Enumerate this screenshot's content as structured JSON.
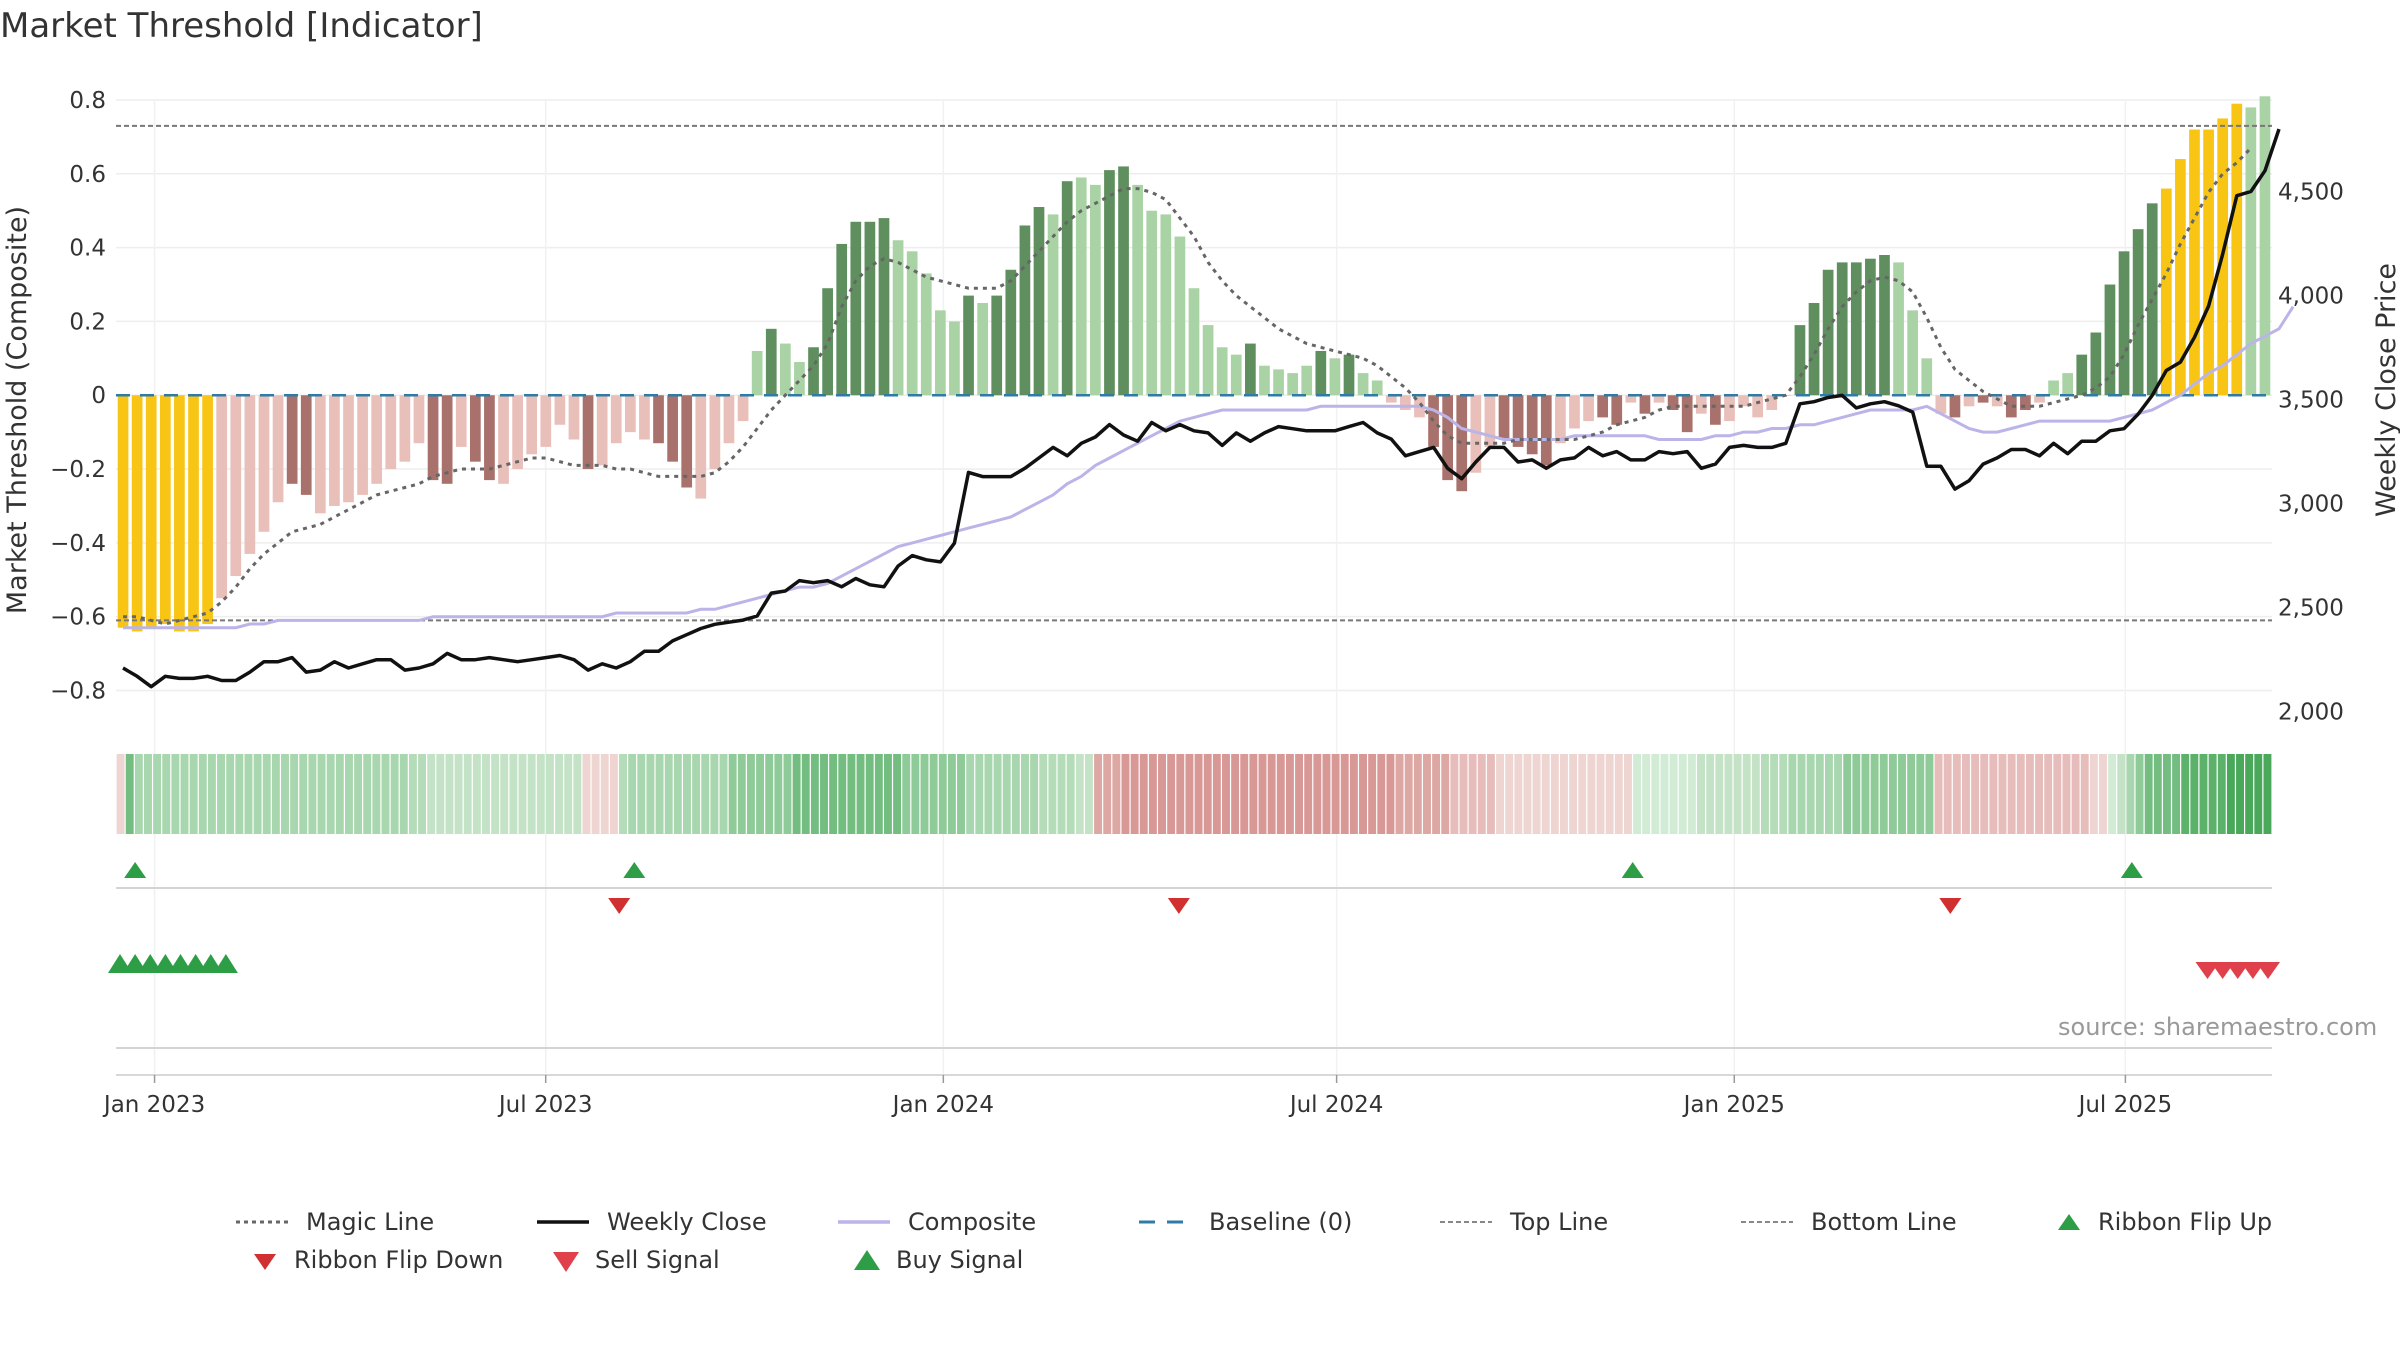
{
  "title": "Market Threshold [Indicator]",
  "source": "source: sharemaestro.com",
  "colors": {
    "pos_strong": "#5f8f5e",
    "pos_light": "#a9d3a5",
    "neg_strong": "#a8716c",
    "neg_light": "#e9bfba",
    "extreme": "#f8c515",
    "magic": "#666666",
    "close": "#111111",
    "composite": "#bbb4e8",
    "baseline": "#2f7ba6",
    "guide": "#777777",
    "flip_up": "#2e9e46",
    "flip_down": "#d13030",
    "sell": "#e0404c",
    "buy": "#2e9e46"
  },
  "chart_data": {
    "type": "bar",
    "title": "Market Threshold [Indicator]",
    "ylabel": "Market Threshold (Composite)",
    "ylabel_right": "Weekly Close Price",
    "ylim": [
      -0.88,
      0.8
    ],
    "ylim_right": [
      1960,
      4940
    ],
    "y_ticks": [
      0.8,
      0.6,
      0.4,
      0.2,
      0,
      -0.2,
      -0.4,
      -0.6,
      -0.8
    ],
    "y_tick_labels": [
      "0.8",
      "0.6",
      "0.4",
      "0.2",
      "0",
      "−0.2",
      "−0.4",
      "−0.6",
      "−0.8"
    ],
    "y2_ticks": [
      4500,
      4000,
      3500,
      3000,
      2500,
      2000
    ],
    "y2_tick_labels": [
      "4,500",
      "4,000",
      "3,500",
      "3,000",
      "2,500",
      "2,000"
    ],
    "x_start": "2022-12-16",
    "x_end": "2025-09-05",
    "x_ticks": [
      {
        "date": "2023-01-01",
        "label": "Jan 2023"
      },
      {
        "date": "2023-07-01",
        "label": "Jul 2023"
      },
      {
        "date": "2024-01-01",
        "label": "Jan 2024"
      },
      {
        "date": "2024-07-01",
        "label": "Jul 2024"
      },
      {
        "date": "2025-01-01",
        "label": "Jan 2025"
      },
      {
        "date": "2025-07-01",
        "label": "Jul 2025"
      }
    ],
    "top_line": 0.73,
    "bottom_line": -0.61,
    "baseline": 0,
    "bars": [
      -0.63,
      -0.64,
      -0.63,
      -0.62,
      -0.64,
      -0.64,
      -0.62,
      -0.55,
      -0.49,
      -0.43,
      -0.37,
      -0.29,
      -0.24,
      -0.27,
      -0.32,
      -0.3,
      -0.29,
      -0.27,
      -0.24,
      -0.2,
      -0.18,
      -0.13,
      -0.23,
      -0.24,
      -0.14,
      -0.18,
      -0.23,
      -0.24,
      -0.2,
      -0.16,
      -0.14,
      -0.08,
      -0.12,
      -0.2,
      -0.19,
      -0.13,
      -0.1,
      -0.12,
      -0.13,
      -0.18,
      -0.25,
      -0.28,
      -0.2,
      -0.13,
      -0.07,
      0.12,
      0.18,
      0.14,
      0.09,
      0.13,
      0.29,
      0.41,
      0.47,
      0.47,
      0.48,
      0.42,
      0.39,
      0.33,
      0.23,
      0.2,
      0.27,
      0.25,
      0.27,
      0.34,
      0.46,
      0.51,
      0.49,
      0.58,
      0.59,
      0.57,
      0.61,
      0.62,
      0.57,
      0.5,
      0.49,
      0.43,
      0.29,
      0.19,
      0.13,
      0.11,
      0.14,
      0.08,
      0.07,
      0.06,
      0.08,
      0.12,
      0.1,
      0.11,
      0.06,
      0.04,
      -0.02,
      -0.04,
      -0.06,
      -0.14,
      -0.23,
      -0.26,
      -0.21,
      -0.14,
      -0.12,
      -0.14,
      -0.16,
      -0.19,
      -0.13,
      -0.09,
      -0.07,
      -0.06,
      -0.08,
      -0.02,
      -0.05,
      -0.02,
      -0.04,
      -0.1,
      -0.05,
      -0.08,
      -0.07,
      -0.03,
      -0.06,
      -0.04,
      0.0,
      0.19,
      0.25,
      0.34,
      0.36,
      0.36,
      0.37,
      0.38,
      0.36,
      0.23,
      0.1,
      -0.05,
      -0.06,
      -0.03,
      -0.02,
      -0.03,
      -0.06,
      -0.04,
      -0.02,
      0.04,
      0.06,
      0.11,
      0.17,
      0.3,
      0.39,
      0.45,
      0.52,
      0.56,
      0.64,
      0.72,
      0.72,
      0.75,
      0.79,
      0.78,
      0.81
    ],
    "bar_styles": [
      "E",
      "E",
      "E",
      "E",
      "E",
      "E",
      "E",
      "L",
      "L",
      "L",
      "L",
      "L",
      "S",
      "S",
      "L",
      "L",
      "L",
      "L",
      "L",
      "L",
      "L",
      "L",
      "S",
      "S",
      "L",
      "S",
      "S",
      "L",
      "L",
      "L",
      "L",
      "L",
      "L",
      "S",
      "L",
      "L",
      "L",
      "L",
      "S",
      "S",
      "S",
      "L",
      "L",
      "L",
      "L",
      "L",
      "S",
      "L",
      "L",
      "S",
      "S",
      "S",
      "S",
      "S",
      "S",
      "L",
      "L",
      "L",
      "L",
      "L",
      "S",
      "L",
      "S",
      "S",
      "S",
      "S",
      "L",
      "S",
      "L",
      "L",
      "S",
      "S",
      "L",
      "L",
      "L",
      "L",
      "L",
      "L",
      "L",
      "L",
      "S",
      "L",
      "L",
      "L",
      "L",
      "S",
      "L",
      "S",
      "L",
      "L",
      "L",
      "L",
      "L",
      "S",
      "S",
      "S",
      "L",
      "L",
      "S",
      "S",
      "S",
      "S",
      "L",
      "L",
      "L",
      "S",
      "S",
      "L",
      "S",
      "L",
      "S",
      "S",
      "L",
      "S",
      "L",
      "L",
      "L",
      "L",
      "L",
      "S",
      "S",
      "S",
      "S",
      "S",
      "S",
      "S",
      "L",
      "L",
      "L",
      "L",
      "S",
      "L",
      "S",
      "L",
      "S",
      "S",
      "L",
      "L",
      "L",
      "S",
      "S",
      "S",
      "S",
      "S",
      "S",
      "E",
      "E",
      "E",
      "E",
      "E",
      "E"
    ],
    "magic_line": [
      -0.6,
      -0.6,
      -0.61,
      -0.62,
      -0.61,
      -0.6,
      -0.59,
      -0.56,
      -0.52,
      -0.47,
      -0.43,
      -0.4,
      -0.37,
      -0.36,
      -0.35,
      -0.33,
      -0.31,
      -0.29,
      -0.27,
      -0.26,
      -0.25,
      -0.24,
      -0.22,
      -0.21,
      -0.2,
      -0.2,
      -0.2,
      -0.19,
      -0.18,
      -0.17,
      -0.17,
      -0.18,
      -0.19,
      -0.19,
      -0.19,
      -0.2,
      -0.2,
      -0.21,
      -0.22,
      -0.22,
      -0.22,
      -0.22,
      -0.21,
      -0.18,
      -0.14,
      -0.09,
      -0.04,
      0.0,
      0.04,
      0.08,
      0.14,
      0.24,
      0.31,
      0.35,
      0.37,
      0.36,
      0.34,
      0.32,
      0.31,
      0.3,
      0.29,
      0.29,
      0.29,
      0.31,
      0.35,
      0.39,
      0.43,
      0.47,
      0.5,
      0.52,
      0.54,
      0.56,
      0.56,
      0.55,
      0.53,
      0.48,
      0.43,
      0.36,
      0.31,
      0.27,
      0.24,
      0.21,
      0.18,
      0.16,
      0.14,
      0.13,
      0.12,
      0.11,
      0.1,
      0.08,
      0.05,
      0.02,
      -0.02,
      -0.07,
      -0.11,
      -0.13,
      -0.13,
      -0.13,
      -0.13,
      -0.12,
      -0.12,
      -0.12,
      -0.12,
      -0.12,
      -0.11,
      -0.1,
      -0.08,
      -0.07,
      -0.06,
      -0.04,
      -0.03,
      -0.03,
      -0.03,
      -0.03,
      -0.03,
      -0.03,
      -0.02,
      -0.01,
      0.0,
      0.05,
      0.11,
      0.18,
      0.24,
      0.28,
      0.31,
      0.32,
      0.31,
      0.28,
      0.21,
      0.13,
      0.07,
      0.04,
      0.01,
      -0.01,
      -0.03,
      -0.03,
      -0.03,
      -0.02,
      -0.01,
      0.0,
      0.02,
      0.05,
      0.11,
      0.19,
      0.26,
      0.33,
      0.41,
      0.48,
      0.55,
      0.6,
      0.63,
      0.67
    ],
    "weekly_close": [
      2210,
      2170,
      2120,
      2170,
      2160,
      2160,
      2170,
      2150,
      2150,
      2190,
      2240,
      2240,
      2260,
      2190,
      2200,
      2240,
      2210,
      2230,
      2250,
      2250,
      2200,
      2210,
      2230,
      2280,
      2250,
      2250,
      2260,
      2250,
      2240,
      2250,
      2260,
      2270,
      2250,
      2200,
      2230,
      2210,
      2240,
      2290,
      2290,
      2340,
      2370,
      2400,
      2420,
      2430,
      2440,
      2460,
      2570,
      2580,
      2630,
      2620,
      2630,
      2600,
      2640,
      2610,
      2600,
      2700,
      2750,
      2730,
      2720,
      2810,
      3150,
      3130,
      3130,
      3130,
      3170,
      3220,
      3270,
      3230,
      3290,
      3320,
      3380,
      3330,
      3300,
      3390,
      3350,
      3380,
      3350,
      3340,
      3280,
      3340,
      3300,
      3340,
      3370,
      3360,
      3350,
      3350,
      3350,
      3370,
      3390,
      3340,
      3310,
      3230,
      3250,
      3270,
      3170,
      3120,
      3200,
      3270,
      3270,
      3200,
      3210,
      3170,
      3210,
      3220,
      3270,
      3230,
      3250,
      3210,
      3210,
      3250,
      3240,
      3250,
      3170,
      3190,
      3270,
      3280,
      3270,
      3270,
      3290,
      3480,
      3490,
      3510,
      3520,
      3460,
      3480,
      3490,
      3470,
      3440,
      3180,
      3180,
      3070,
      3110,
      3190,
      3220,
      3260,
      3260,
      3230,
      3290,
      3240,
      3300,
      3300,
      3350,
      3360,
      3430,
      3520,
      3640,
      3680,
      3800,
      3950,
      4200,
      4480,
      4500,
      4600,
      4800
    ],
    "composite": [
      -0.63,
      -0.63,
      -0.63,
      -0.63,
      -0.63,
      -0.63,
      -0.63,
      -0.63,
      -0.63,
      -0.62,
      -0.62,
      -0.61,
      -0.61,
      -0.61,
      -0.61,
      -0.61,
      -0.61,
      -0.61,
      -0.61,
      -0.61,
      -0.61,
      -0.61,
      -0.6,
      -0.6,
      -0.6,
      -0.6,
      -0.6,
      -0.6,
      -0.6,
      -0.6,
      -0.6,
      -0.6,
      -0.6,
      -0.6,
      -0.6,
      -0.59,
      -0.59,
      -0.59,
      -0.59,
      -0.59,
      -0.59,
      -0.58,
      -0.58,
      -0.57,
      -0.56,
      -0.55,
      -0.54,
      -0.53,
      -0.52,
      -0.52,
      -0.51,
      -0.49,
      -0.47,
      -0.45,
      -0.43,
      -0.41,
      -0.4,
      -0.39,
      -0.38,
      -0.37,
      -0.36,
      -0.35,
      -0.34,
      -0.33,
      -0.31,
      -0.29,
      -0.27,
      -0.24,
      -0.22,
      -0.19,
      -0.17,
      -0.15,
      -0.13,
      -0.11,
      -0.09,
      -0.07,
      -0.06,
      -0.05,
      -0.04,
      -0.04,
      -0.04,
      -0.04,
      -0.04,
      -0.04,
      -0.04,
      -0.03,
      -0.03,
      -0.03,
      -0.03,
      -0.03,
      -0.03,
      -0.03,
      -0.03,
      -0.04,
      -0.06,
      -0.09,
      -0.1,
      -0.11,
      -0.12,
      -0.12,
      -0.12,
      -0.12,
      -0.12,
      -0.11,
      -0.11,
      -0.11,
      -0.11,
      -0.11,
      -0.11,
      -0.12,
      -0.12,
      -0.12,
      -0.12,
      -0.11,
      -0.11,
      -0.1,
      -0.1,
      -0.09,
      -0.09,
      -0.08,
      -0.08,
      -0.07,
      -0.06,
      -0.05,
      -0.04,
      -0.04,
      -0.04,
      -0.04,
      -0.03,
      -0.05,
      -0.07,
      -0.09,
      -0.1,
      -0.1,
      -0.09,
      -0.08,
      -0.07,
      -0.07,
      -0.07,
      -0.07,
      -0.07,
      -0.07,
      -0.06,
      -0.05,
      -0.04,
      -0.02,
      0.0,
      0.03,
      0.06,
      0.08,
      0.11,
      0.14,
      0.16,
      0.18,
      0.24
    ],
    "ribbon": [
      "#efd5d2",
      "#73bd80",
      "#a8d6ae",
      "#a8d6ae",
      "#a8d6ae",
      "#a8d6ae",
      "#a8d6ae",
      "#a8d6ae",
      "#a8d6ae",
      "#a8d6ae",
      "#a8d6ae",
      "#a8d6ae",
      "#a8d6ae",
      "#a8d6ae",
      "#a8d6ae",
      "#a8d6ae",
      "#a8d6ae",
      "#a8d6ae",
      "#a8d6ae",
      "#a8d6ae",
      "#a8d6ae",
      "#a8d6ae",
      "#a8d6ae",
      "#a8d6ae",
      "#a8d6ae",
      "#a8d6ae",
      "#a8d6ae",
      "#a8d6ae",
      "#a8d6ae",
      "#a8d6ae",
      "#a8d6ae",
      "#a8d6ae",
      "#b5dcb9",
      "#b5dcb9",
      "#c4e3c6",
      "#c4e3c6",
      "#c4e3c6",
      "#c4e3c6",
      "#c4e3c6",
      "#c4e3c6",
      "#c4e3c6",
      "#c4e3c6",
      "#c4e3c6",
      "#c4e3c6",
      "#c4e3c6",
      "#c4e3c6",
      "#c4e3c6",
      "#c4e3c6",
      "#c4e3c6",
      "#c4e3c6",
      "#c4e3c6",
      "#efd5d2",
      "#efd5d2",
      "#efd5d2",
      "#efd5d2",
      "#b5dcb9",
      "#a8d6ae",
      "#a8d6ae",
      "#a8d6ae",
      "#a8d6ae",
      "#a8d6ae",
      "#a8d6ae",
      "#a8d6ae",
      "#a8d6ae",
      "#a8d6ae",
      "#a8d6ae",
      "#a8d6ae",
      "#8fcb98",
      "#8fcb98",
      "#8fcb98",
      "#8fcb98",
      "#8fcb98",
      "#8fcb98",
      "#8fcb98",
      "#73bd80",
      "#73bd80",
      "#73bd80",
      "#73bd80",
      "#73bd80",
      "#73bd80",
      "#73bd80",
      "#73bd80",
      "#73bd80",
      "#73bd80",
      "#73bd80",
      "#73bd80",
      "#8fcb98",
      "#8fcb98",
      "#8fcb98",
      "#8fcb98",
      "#8fcb98",
      "#8fcb98",
      "#8fcb98",
      "#a8d6ae",
      "#a8d6ae",
      "#a8d6ae",
      "#a8d6ae",
      "#a8d6ae",
      "#a8d6ae",
      "#a8d6ae",
      "#a8d6ae",
      "#b5dcb9",
      "#b5dcb9",
      "#b5dcb9",
      "#b5dcb9",
      "#c4e3c6",
      "#c4e3c6",
      "#dda7a3",
      "#dda7a3",
      "#dda7a3",
      "#d89896",
      "#d89896",
      "#d89896",
      "#d89896",
      "#d89896",
      "#d89896",
      "#d89896",
      "#d89896",
      "#d89896",
      "#d89896",
      "#d89896",
      "#d89896",
      "#d89896",
      "#d89896",
      "#d89896",
      "#d89896",
      "#d89896",
      "#d89896",
      "#d89896",
      "#d89896",
      "#d89896",
      "#d89896",
      "#d89896",
      "#d89896",
      "#d89896",
      "#d89896",
      "#d89896",
      "#d89896",
      "#d89896",
      "#d89896",
      "#dda7a3",
      "#dda7a3",
      "#dda7a3",
      "#dda7a3",
      "#dda7a3",
      "#dda7a3",
      "#e6bdba",
      "#e6bdba",
      "#e6bdba",
      "#e6bdba",
      "#e6bdba",
      "#efd5d2",
      "#efd5d2",
      "#efd5d2",
      "#efd5d2",
      "#efd5d2",
      "#efd5d2",
      "#efd5d2",
      "#efd5d2",
      "#efd5d2",
      "#efd5d2",
      "#efd5d2",
      "#efd5d2",
      "#efd5d2",
      "#efd5d2",
      "#efd5d2",
      "#d2ebd4",
      "#d2ebd4",
      "#d2ebd4",
      "#d2ebd4",
      "#d2ebd4",
      "#d2ebd4",
      "#d2ebd4",
      "#c4e3c6",
      "#c4e3c6",
      "#c4e3c6",
      "#c4e3c6",
      "#c4e3c6",
      "#c4e3c6",
      "#c4e3c6",
      "#b5dcb9",
      "#b5dcb9",
      "#b5dcb9",
      "#a8d6ae",
      "#a8d6ae",
      "#a8d6ae",
      "#a8d6ae",
      "#a8d6ae",
      "#a8d6ae",
      "#8fcb98",
      "#8fcb98",
      "#8fcb98",
      "#8fcb98",
      "#8fcb98",
      "#8fcb98",
      "#8fcb98",
      "#8fcb98",
      "#8fcb98",
      "#8fcb98",
      "#e6bdba",
      "#e6bdba",
      "#e6bdba",
      "#e6bdba",
      "#e6bdba",
      "#e6bdba",
      "#e6bdba",
      "#e6bdba",
      "#e6bdba",
      "#e6bdba",
      "#e6bdba",
      "#e6bdba",
      "#e6bdba",
      "#e6bdba",
      "#e6bdba",
      "#e6bdba",
      "#e6bdba",
      "#efd5d2",
      "#efd5d2",
      "#d2ebd4",
      "#c4e3c6",
      "#a8d6ae",
      "#8fcb98",
      "#73bd80",
      "#73bd80",
      "#73bd80",
      "#73bd80",
      "#5cb26b",
      "#5cb26b",
      "#5cb26b",
      "#5cb26b",
      "#5cb26b",
      "#4aa85a",
      "#4aa85a",
      "#4aa85a",
      "#4aa85a",
      "#4aa85a"
    ],
    "ribbon_flips_up": [
      "2022-12-23",
      "2023-08-11",
      "2024-11-15",
      "2025-07-04"
    ],
    "ribbon_flips_down": [
      "2023-08-04",
      "2024-04-19",
      "2025-04-11"
    ],
    "buy_signals": [
      "2022-12-16",
      "2022-12-23",
      "2022-12-30",
      "2023-01-06",
      "2023-01-13",
      "2023-01-20",
      "2023-01-27",
      "2023-02-03"
    ],
    "sell_signals": [
      "2025-08-08",
      "2025-08-15",
      "2025-08-22",
      "2025-08-29",
      "2025-09-05"
    ]
  },
  "legend": [
    {
      "key": "magic",
      "label": "Magic Line"
    },
    {
      "key": "close",
      "label": "Weekly Close"
    },
    {
      "key": "composite",
      "label": "Composite"
    },
    {
      "key": "baseline",
      "label": "Baseline (0)"
    },
    {
      "key": "top",
      "label": "Top Line"
    },
    {
      "key": "bottom",
      "label": "Bottom Line"
    },
    {
      "key": "flip_up",
      "label": "Ribbon Flip Up"
    },
    {
      "key": "flip_down",
      "label": "Ribbon Flip Down"
    },
    {
      "key": "sell",
      "label": "Sell Signal"
    },
    {
      "key": "buy",
      "label": "Buy Signal"
    }
  ]
}
